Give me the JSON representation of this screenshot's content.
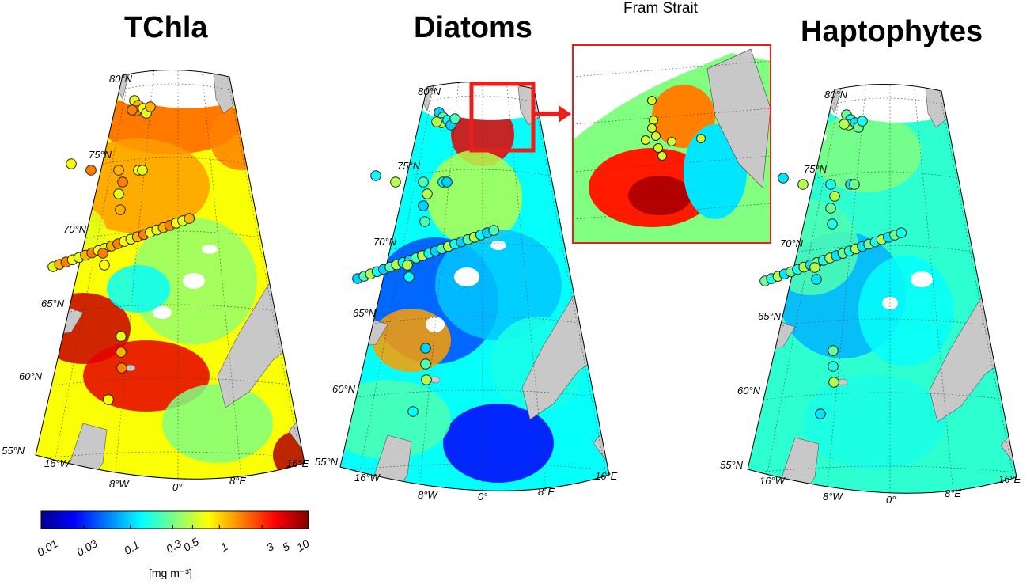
{
  "panels": [
    {
      "id": "tchla",
      "title": "TChla"
    },
    {
      "id": "diatoms",
      "title": "Diatoms"
    },
    {
      "id": "haptophytes",
      "title": "Haptophytes"
    }
  ],
  "inset": {
    "label": "Fram Strait"
  },
  "latitude_labels": [
    "80°N",
    "75°N",
    "70°N",
    "65°N",
    "60°N",
    "55°N"
  ],
  "longitude_labels": [
    "16°W",
    "8°W",
    "0°",
    "8°E",
    "16°E"
  ],
  "colorbar": {
    "ticks": [
      "0.01",
      "0.03",
      "0.1",
      "0.3",
      "0.5",
      "1",
      "3",
      "5",
      "10"
    ],
    "unit": "[mg m⁻³]",
    "scale": "log"
  },
  "colors": {
    "land": "#c8c8c8",
    "inset_frame": "#e8201c",
    "arrow": "#e8201c"
  }
}
